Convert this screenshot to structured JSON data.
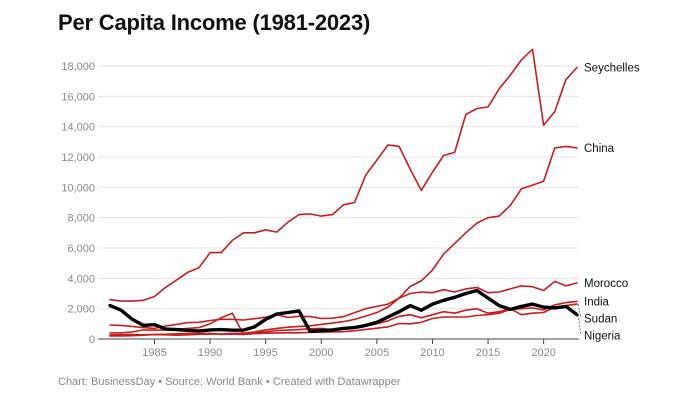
{
  "page": {
    "title": "Per Capita Income (1981-2023)",
    "source_text": "Chart: BusinessDay • Source: World Bank • Created with Datawrapper"
  },
  "chart_data": {
    "type": "line",
    "title": "Per Capita Income (1981-2023)",
    "xlabel": "",
    "ylabel": "",
    "xlim": [
      1981,
      2023
    ],
    "ylim": [
      0,
      18000
    ],
    "x_ticks": [
      1985,
      1990,
      1995,
      2000,
      2005,
      2010,
      2015,
      2020
    ],
    "y_ticks": [
      0,
      2000,
      4000,
      6000,
      8000,
      10000,
      12000,
      14000,
      16000,
      18000
    ],
    "y_tick_labels": [
      "0",
      "2,000",
      "4,000",
      "6,000",
      "8,000",
      "10,000",
      "12,000",
      "14,000",
      "16,000",
      "18,000"
    ],
    "grid": true,
    "colors": {
      "red": "#c91d1d",
      "highlight": "#000000",
      "grid": "#e3e3e3"
    },
    "x": [
      1981,
      1982,
      1983,
      1984,
      1985,
      1986,
      1987,
      1988,
      1989,
      1990,
      1991,
      1992,
      1993,
      1994,
      1995,
      1996,
      1997,
      1998,
      1999,
      2000,
      2001,
      2002,
      2003,
      2004,
      2005,
      2006,
      2007,
      2008,
      2009,
      2010,
      2011,
      2012,
      2013,
      2014,
      2015,
      2016,
      2017,
      2018,
      2019,
      2020,
      2021,
      2022,
      2023
    ],
    "series": [
      {
        "name": "Seychelles",
        "color": "#c91d1d",
        "width": 1.6,
        "values": [
          2600,
          2500,
          2500,
          2550,
          2800,
          3400,
          3900,
          4400,
          4700,
          5700,
          5700,
          6500,
          7000,
          7000,
          7200,
          7050,
          7700,
          8200,
          8250,
          8100,
          8200,
          8850,
          9000,
          10800,
          11800,
          12800,
          12700,
          11200,
          9800,
          11000,
          12100,
          12300,
          14800,
          15200,
          15300,
          16500,
          17400,
          18400,
          19100,
          14100,
          15000,
          17100,
          17900
        ]
      },
      {
        "name": "China",
        "color": "#c91d1d",
        "width": 1.6,
        "values": [
          200,
          200,
          220,
          250,
          290,
          280,
          250,
          280,
          310,
          320,
          330,
          370,
          380,
          470,
          600,
          700,
          780,
          830,
          870,
          960,
          1050,
          1150,
          1290,
          1510,
          1750,
          2100,
          2700,
          3470,
          3830,
          4550,
          5600,
          6300,
          7000,
          7640,
          8000,
          8100,
          8800,
          9900,
          10150,
          10400,
          12600,
          12700,
          12600
        ]
      },
      {
        "name": "Morocco",
        "color": "#c91d1d",
        "width": 1.6,
        "values": [
          920,
          900,
          830,
          750,
          700,
          860,
          960,
          1080,
          1100,
          1220,
          1300,
          1300,
          1250,
          1340,
          1440,
          1600,
          1420,
          1500,
          1480,
          1350,
          1370,
          1480,
          1740,
          2000,
          2150,
          2300,
          2700,
          3000,
          3100,
          3050,
          3250,
          3100,
          3300,
          3400,
          3050,
          3100,
          3300,
          3500,
          3450,
          3200,
          3800,
          3500,
          3700
        ]
      },
      {
        "name": "India",
        "color": "#c91d1d",
        "width": 1.6,
        "values": [
          270,
          280,
          290,
          280,
          290,
          310,
          340,
          360,
          350,
          370,
          300,
          320,
          300,
          350,
          380,
          400,
          410,
          410,
          440,
          450,
          460,
          480,
          540,
          630,
          710,
          800,
          1020,
          1000,
          1100,
          1350,
          1450,
          1450,
          1450,
          1550,
          1600,
          1700,
          1950,
          2000,
          2050,
          1910,
          2250,
          2400,
          2480
        ]
      },
      {
        "name": "Sudan",
        "color": "#c91d1d",
        "width": 1.6,
        "values": [
          400,
          400,
          460,
          600,
          580,
          600,
          650,
          700,
          750,
          1000,
          1400,
          1700,
          300,
          400,
          470,
          560,
          590,
          620,
          670,
          700,
          600,
          650,
          780,
          850,
          1000,
          1200,
          1500,
          1600,
          1400,
          1600,
          1800,
          1700,
          1900,
          2000,
          1700,
          1800,
          2000,
          1600,
          1700,
          1750,
          2100,
          2200,
          2300
        ]
      },
      {
        "name": "Nigeria",
        "color": "#000000",
        "width": 3.4,
        "values": [
          2200,
          1900,
          1300,
          900,
          950,
          650,
          620,
          570,
          520,
          600,
          620,
          580,
          590,
          800,
          1300,
          1650,
          1750,
          1850,
          500,
          560,
          600,
          700,
          750,
          900,
          1100,
          1450,
          1800,
          2200,
          1900,
          2300,
          2550,
          2750,
          3000,
          3200,
          2700,
          2200,
          1950,
          2150,
          2300,
          2100,
          2050,
          2150,
          1600
        ]
      }
    ],
    "labels": [
      {
        "name": "Seychelles",
        "text": "Seychelles"
      },
      {
        "name": "China",
        "text": "China"
      },
      {
        "name": "Morocco",
        "text": "Morocco"
      },
      {
        "name": "India",
        "text": "India"
      },
      {
        "name": "Sudan",
        "text": "Sudan"
      },
      {
        "name": "Nigeria",
        "text": "Nigeria"
      }
    ]
  }
}
